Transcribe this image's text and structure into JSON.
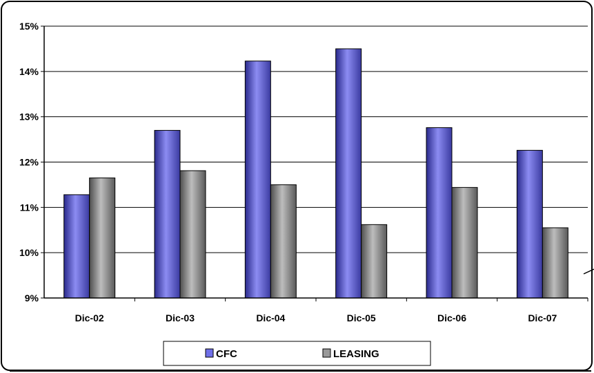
{
  "chart_data": {
    "type": "bar",
    "categories": [
      "Dic-02",
      "Dic-03",
      "Dic-04",
      "Dic-05",
      "Dic-06",
      "Dic-07"
    ],
    "series": [
      {
        "name": "CFC",
        "values": [
          11.28,
          12.7,
          14.23,
          14.5,
          12.76,
          12.26
        ],
        "color": "#6f6fe8"
      },
      {
        "name": "LEASING",
        "values": [
          11.65,
          11.81,
          11.5,
          10.62,
          11.44,
          10.55
        ],
        "color": "#9a9a9a"
      }
    ],
    "y_ticks": [
      "9%",
      "10%",
      "11%",
      "12%",
      "13%",
      "14%",
      "15%"
    ],
    "ylim": [
      9,
      15
    ],
    "grid": true,
    "legend": "bottom"
  }
}
